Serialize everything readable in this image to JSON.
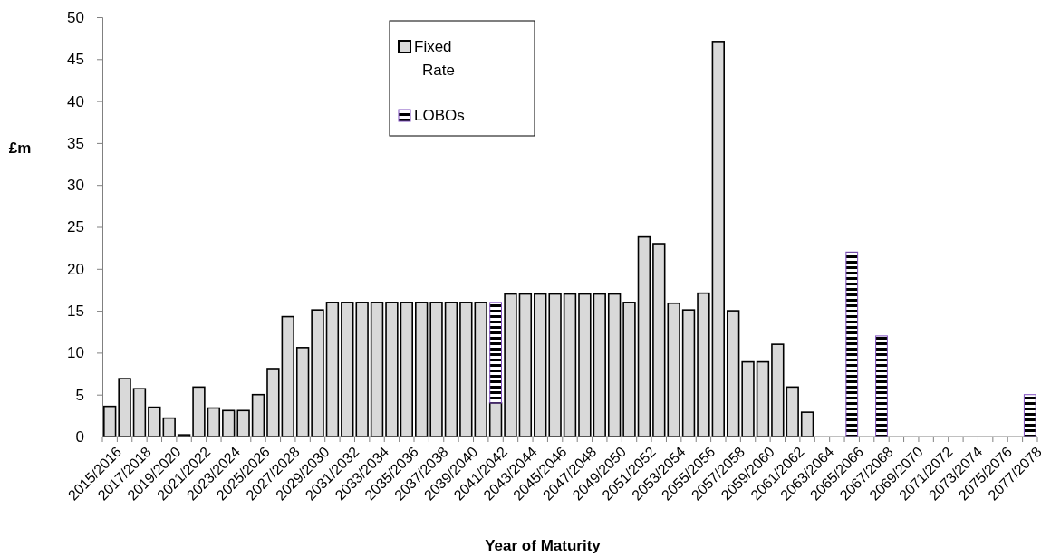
{
  "chart_data": {
    "type": "bar",
    "stacked": true,
    "ylabel": "£m",
    "xlabel": "Year of Maturity",
    "categories": [
      "2015/2016",
      null,
      "2017/2018",
      null,
      "2019/2020",
      null,
      "2021/2022",
      null,
      "2023/2024",
      null,
      "2025/2026",
      null,
      "2027/2028",
      null,
      "2029/2030",
      null,
      "2031/2032",
      null,
      "2033/2034",
      null,
      "2035/2036",
      null,
      "2037/2038",
      null,
      "2039/2040",
      null,
      "2041/2042",
      null,
      "2043/2044",
      null,
      "2045/2046",
      null,
      "2047/2048",
      null,
      "2049/2050",
      null,
      "2051/2052",
      null,
      "2053/2054",
      null,
      "2055/2056",
      null,
      "2057/2058",
      null,
      "2059/2060",
      null,
      "2061/2062",
      null,
      "2063/2064",
      null,
      "2065/2066",
      null,
      "2067/2068",
      null,
      "2069/2070",
      null,
      "2071/2072",
      null,
      "2073/2074",
      null,
      "2075/2076",
      null,
      "2077/2078"
    ],
    "series": [
      {
        "name": "Fixed Rate",
        "color": "#d9d9d9",
        "values": [
          3.6,
          6.9,
          5.7,
          3.5,
          2.2,
          0.2,
          5.9,
          3.4,
          3.1,
          3.1,
          5,
          8.1,
          14.3,
          10.6,
          15.1,
          16,
          16,
          16,
          16,
          16,
          16,
          16,
          16,
          16,
          16,
          16,
          4,
          17,
          17,
          17,
          17,
          17,
          17,
          17,
          17,
          16,
          23.8,
          23,
          15.9,
          15.1,
          17.1,
          47.1,
          15,
          8.9,
          8.9,
          11,
          5.9,
          2.9,
          0,
          0,
          0,
          0,
          0,
          0,
          0,
          0,
          0,
          0,
          0,
          0,
          0,
          0,
          0
        ]
      },
      {
        "name": "LOBOs",
        "color": "#7f4fbf",
        "values": [
          0,
          0,
          0,
          0,
          0,
          0,
          0,
          0,
          0,
          0,
          0,
          0,
          0,
          0,
          0,
          0,
          0,
          0,
          0,
          0,
          0,
          0,
          0,
          0,
          0,
          0,
          12,
          0,
          0,
          0,
          0,
          0,
          0,
          0,
          0,
          0,
          0,
          0,
          0,
          0,
          0,
          0,
          0,
          0,
          0,
          0,
          0,
          0,
          0,
          0,
          22,
          0,
          12,
          0,
          0,
          0,
          0,
          0,
          0,
          0,
          0,
          0,
          5
        ]
      }
    ],
    "ylim": [
      0,
      50
    ],
    "yticks": [
      0,
      5,
      10,
      15,
      20,
      25,
      30,
      35,
      40,
      45,
      50
    ],
    "legend": "top"
  }
}
